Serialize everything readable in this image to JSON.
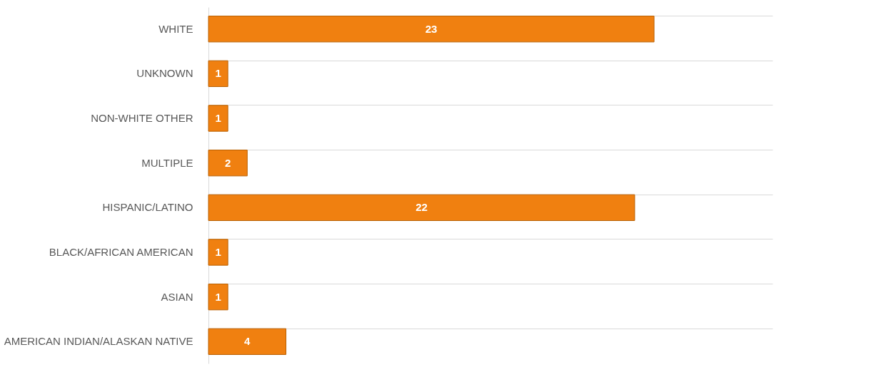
{
  "chart_data": {
    "type": "bar",
    "orientation": "horizontal",
    "categories": [
      "WHITE",
      "UNKNOWN",
      "NON-WHITE OTHER",
      "MULTIPLE",
      "HISPANIC/LATINO",
      "BLACK/AFRICAN AMERICAN",
      "ASIAN",
      "AMERICAN INDIAN/ALASKAN NATIVE"
    ],
    "values": [
      23,
      1,
      1,
      2,
      22,
      1,
      1,
      4
    ],
    "color": "#f08010",
    "data_labels": true,
    "grid": "y"
  }
}
